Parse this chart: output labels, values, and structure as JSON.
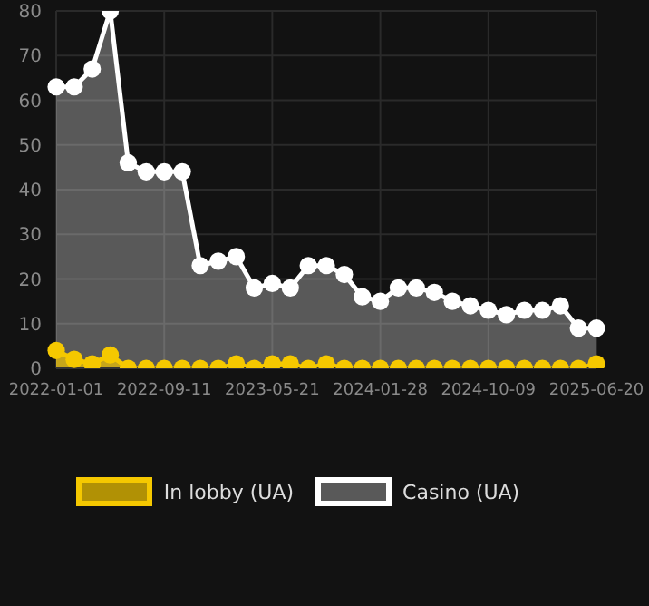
{
  "chart_data": {
    "type": "area",
    "categories": [
      "2022-01-01",
      null,
      null,
      null,
      null,
      null,
      "2022-09-11",
      null,
      null,
      null,
      null,
      null,
      "2023-05-21",
      null,
      null,
      null,
      null,
      null,
      "2024-01-28",
      null,
      null,
      null,
      null,
      null,
      "2024-10-09",
      null,
      null,
      null,
      null,
      null,
      "2025-06-20"
    ],
    "series": [
      {
        "name": "In lobby (UA)",
        "color": "#f5c800",
        "values": [
          4,
          2,
          1,
          3,
          0,
          0,
          0,
          0,
          0,
          0,
          1,
          0,
          1,
          1,
          0,
          1,
          0,
          0,
          0,
          0,
          0,
          0,
          0,
          0,
          0,
          0,
          0,
          0,
          0,
          0,
          1
        ]
      },
      {
        "name": "Casino (UA)",
        "color": "#ffffff",
        "values": [
          63,
          63,
          67,
          80,
          46,
          44,
          44,
          44,
          23,
          24,
          25,
          18,
          19,
          18,
          23,
          23,
          21,
          16,
          15,
          18,
          18,
          17,
          15,
          14,
          13,
          12,
          13,
          13,
          14,
          9,
          9
        ]
      }
    ],
    "ylim": [
      0,
      80
    ],
    "yticks": [
      0,
      10,
      20,
      30,
      40,
      50,
      60,
      70,
      80
    ],
    "grid": true,
    "legend": "bottom",
    "marker": "circle"
  }
}
